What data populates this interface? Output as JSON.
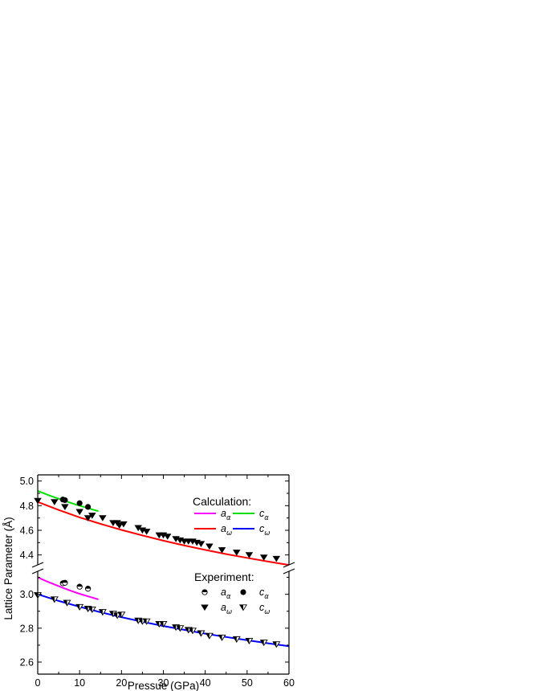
{
  "chart_data": {
    "type": "scatter",
    "xlabel": "Pressue (GPa)",
    "ylabel": "Lattice Parameter (Å)",
    "xlim": [
      0,
      60
    ],
    "xticks": [
      "0",
      "10",
      "20",
      "30",
      "40",
      "50",
      "60"
    ],
    "y_axis_break": true,
    "upper_panel": {
      "ylim": [
        4.3,
        5.05
      ],
      "yticks": [
        "4.4",
        "4.6",
        "4.8",
        "5.0"
      ]
    },
    "lower_panel": {
      "ylim": [
        2.6,
        3.15
      ],
      "yticks": [
        "2.6",
        "2.8",
        "3.0"
      ]
    },
    "legend": {
      "calc_title": "Calculation:",
      "exp_title": "Experiment:",
      "entries": [
        {
          "symbol": "a",
          "sub": "α"
        },
        {
          "symbol": "c",
          "sub": "α"
        },
        {
          "symbol": "a",
          "sub": "ω"
        },
        {
          "symbol": "c",
          "sub": "ω"
        }
      ]
    },
    "series": [
      {
        "group": "calculation",
        "label": "a_α",
        "color": "#ff00ff",
        "panel": "lower",
        "x": [
          0,
          2,
          4,
          6,
          8,
          10,
          12,
          14.5
        ],
        "y": [
          3.1,
          3.078,
          3.058,
          3.038,
          3.02,
          3.003,
          2.988,
          2.97
        ]
      },
      {
        "group": "calculation",
        "label": "c_α",
        "color": "#00e000",
        "panel": "upper",
        "x": [
          0,
          3,
          6,
          9,
          12,
          14.5
        ],
        "y": [
          4.92,
          4.88,
          4.845,
          4.81,
          4.78,
          4.755
        ]
      },
      {
        "group": "calculation",
        "label": "a_ω",
        "color": "#ff0000",
        "panel": "upper",
        "x": [
          0,
          5,
          10,
          15,
          20,
          25,
          30,
          35,
          40,
          45,
          50,
          55,
          60
        ],
        "y": [
          4.83,
          4.765,
          4.705,
          4.652,
          4.603,
          4.558,
          4.516,
          4.477,
          4.441,
          4.407,
          4.376,
          4.346,
          4.318
        ]
      },
      {
        "group": "calculation",
        "label": "c_ω",
        "color": "#0000ff",
        "panel": "lower",
        "x": [
          0,
          5,
          10,
          15,
          20,
          25,
          30,
          35,
          40,
          45,
          50,
          55,
          60
        ],
        "y": [
          3.0,
          2.961,
          2.926,
          2.894,
          2.865,
          2.838,
          2.813,
          2.79,
          2.768,
          2.748,
          2.729,
          2.711,
          2.694
        ]
      },
      {
        "group": "experiment",
        "label": "a_α",
        "marker": "half-circle",
        "panel": "lower",
        "x": [
          6,
          6.5,
          10,
          12
        ],
        "y": [
          3.065,
          3.068,
          3.045,
          3.033
        ]
      },
      {
        "group": "experiment",
        "label": "c_α",
        "marker": "filled-circle",
        "panel": "upper",
        "x": [
          6,
          6.5,
          10,
          12
        ],
        "y": [
          4.85,
          4.845,
          4.82,
          4.79
        ]
      },
      {
        "group": "experiment",
        "label": "a_ω",
        "marker": "filled-triangle-down",
        "panel": "upper",
        "x": [
          0,
          4,
          6.5,
          10,
          12,
          13,
          15.5,
          18,
          19,
          19.5,
          20.5,
          24,
          25,
          26,
          29,
          30,
          31,
          33,
          34,
          35,
          36,
          37,
          38,
          39,
          41,
          44,
          47.5,
          50.5,
          54,
          57
        ],
        "y": [
          4.84,
          4.83,
          4.79,
          4.75,
          4.7,
          4.72,
          4.7,
          4.66,
          4.66,
          4.64,
          4.65,
          4.62,
          4.6,
          4.59,
          4.56,
          4.56,
          4.55,
          4.53,
          4.52,
          4.51,
          4.51,
          4.51,
          4.5,
          4.49,
          4.47,
          4.44,
          4.42,
          4.4,
          4.38,
          4.37
        ]
      },
      {
        "group": "experiment",
        "label": "c_ω",
        "marker": "half-triangle-down",
        "panel": "lower",
        "x": [
          0,
          4,
          7,
          10,
          12,
          13,
          15.5,
          18,
          19,
          20,
          24,
          25,
          26,
          29,
          30,
          33,
          34,
          36,
          37,
          39,
          41,
          44,
          47.5,
          50.5,
          54,
          57
        ],
        "y": [
          2.995,
          2.97,
          2.95,
          2.925,
          2.915,
          2.91,
          2.895,
          2.885,
          2.875,
          2.88,
          2.845,
          2.84,
          2.84,
          2.825,
          2.825,
          2.805,
          2.8,
          2.79,
          2.785,
          2.77,
          2.755,
          2.745,
          2.735,
          2.725,
          2.715,
          2.705
        ]
      }
    ]
  }
}
